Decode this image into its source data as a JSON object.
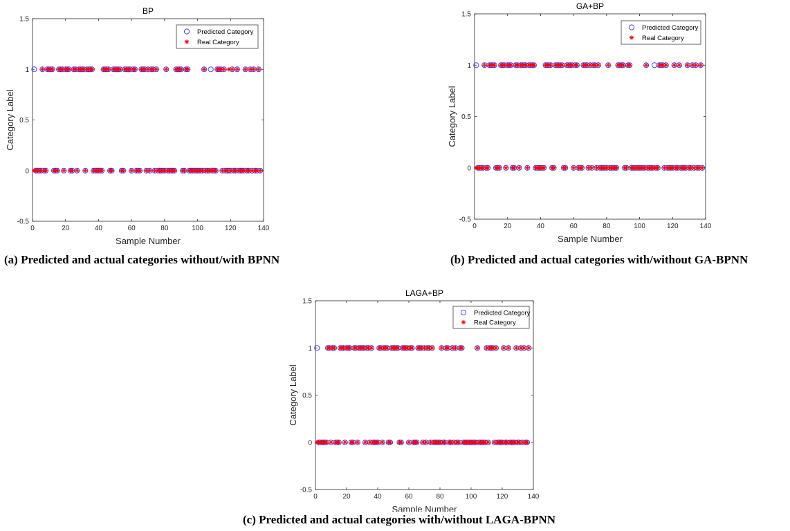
{
  "captions": {
    "a": "(a) Predicted and actual categories without/with BPNN",
    "b": "(b) Predicted and actual categories with/without GA-BPNN",
    "c": "(c) Predicted and actual categories with/without LAGA-BPNN"
  },
  "colors": {
    "predicted": "#3333ff",
    "real": "#ff0000"
  },
  "chart_data": [
    {
      "type": "scatter",
      "title": "BP",
      "xlabel": "Sample Number",
      "ylabel": "Category Label",
      "xlim": [
        0,
        140
      ],
      "ylim": [
        -0.5,
        1.5
      ],
      "xticks": [
        "0",
        "20",
        "40",
        "60",
        "80",
        "100",
        "120",
        "140"
      ],
      "yticks": [
        "-0.5",
        "0",
        "0.5",
        "1",
        "1.5"
      ],
      "grid": false,
      "legend_position": "top-right",
      "series": [
        {
          "name": "Predicted Category",
          "marker": "circle",
          "ones": [
            1,
            6,
            9,
            10,
            11,
            12,
            16,
            17,
            18,
            20,
            21,
            22,
            25,
            26,
            28,
            29,
            30,
            31,
            33,
            34,
            35,
            36,
            43,
            44,
            45,
            46,
            49,
            50,
            51,
            52,
            53,
            56,
            57,
            58,
            59,
            61,
            62,
            66,
            67,
            68,
            70,
            72,
            73,
            75,
            81,
            87,
            88,
            89,
            90,
            93,
            94,
            104,
            108,
            112,
            113,
            114,
            116,
            121,
            124,
            129,
            132,
            134,
            137
          ],
          "zeros": [
            2,
            3,
            4,
            5,
            7,
            8,
            13,
            14,
            15,
            19,
            23,
            24,
            27,
            32,
            37,
            38,
            39,
            40,
            41,
            42,
            47,
            48,
            54,
            55,
            60,
            63,
            64,
            65,
            69,
            71,
            74,
            76,
            77,
            78,
            79,
            80,
            82,
            83,
            84,
            85,
            86,
            91,
            92,
            95,
            96,
            97,
            98,
            99,
            100,
            101,
            102,
            103,
            105,
            106,
            107,
            109,
            110,
            111,
            115,
            117,
            118,
            119,
            120,
            122,
            123,
            125,
            126,
            127,
            128,
            130,
            131,
            133,
            135,
            136,
            138
          ]
        },
        {
          "name": "Real Category",
          "marker": "asterisk",
          "ones": [
            6,
            9,
            10,
            11,
            12,
            16,
            17,
            18,
            20,
            21,
            22,
            25,
            26,
            28,
            29,
            30,
            31,
            33,
            34,
            35,
            36,
            43,
            44,
            45,
            46,
            49,
            50,
            51,
            52,
            53,
            56,
            57,
            58,
            59,
            61,
            62,
            66,
            67,
            68,
            70,
            72,
            73,
            75,
            81,
            87,
            88,
            89,
            90,
            93,
            94,
            104,
            112,
            113,
            114,
            116,
            119,
            121,
            124,
            129,
            132,
            134,
            137
          ],
          "zeros": [
            1,
            2,
            3,
            4,
            5,
            7,
            8,
            13,
            14,
            15,
            19,
            23,
            24,
            27,
            32,
            37,
            38,
            39,
            40,
            41,
            42,
            47,
            48,
            54,
            55,
            60,
            63,
            64,
            65,
            69,
            71,
            74,
            76,
            77,
            78,
            79,
            80,
            82,
            83,
            84,
            85,
            86,
            91,
            92,
            95,
            96,
            97,
            98,
            99,
            100,
            101,
            102,
            103,
            105,
            106,
            107,
            108,
            109,
            110,
            111,
            115,
            117,
            118,
            120,
            122,
            123,
            125,
            126,
            127,
            128,
            130,
            131,
            133,
            135,
            136,
            138
          ]
        }
      ]
    },
    {
      "type": "scatter",
      "title": "GA+BP",
      "xlabel": "Sample Number",
      "ylabel": "Category Label",
      "xlim": [
        0,
        140
      ],
      "ylim": [
        -0.5,
        1.5
      ],
      "xticks": [
        "0",
        "20",
        "40",
        "60",
        "80",
        "100",
        "120",
        "140"
      ],
      "yticks": [
        "-0.5",
        "0",
        "0.5",
        "1",
        "1.5"
      ],
      "grid": false,
      "legend_position": "top-right",
      "series": [
        {
          "name": "Predicted Category",
          "marker": "circle",
          "ones": [
            1,
            6,
            9,
            10,
            11,
            12,
            16,
            17,
            18,
            20,
            21,
            22,
            25,
            26,
            28,
            29,
            30,
            31,
            33,
            34,
            35,
            36,
            43,
            44,
            45,
            46,
            49,
            50,
            51,
            52,
            53,
            56,
            57,
            58,
            59,
            61,
            62,
            66,
            67,
            68,
            70,
            72,
            73,
            75,
            81,
            87,
            88,
            89,
            90,
            93,
            94,
            104,
            109,
            112,
            113,
            114,
            116,
            121,
            124,
            129,
            132,
            134,
            137
          ],
          "zeros": [
            2,
            3,
            4,
            5,
            7,
            8,
            13,
            14,
            15,
            19,
            23,
            24,
            27,
            32,
            37,
            38,
            39,
            40,
            41,
            42,
            47,
            48,
            54,
            55,
            60,
            63,
            64,
            65,
            69,
            71,
            74,
            76,
            77,
            78,
            79,
            80,
            82,
            83,
            84,
            85,
            86,
            91,
            92,
            95,
            96,
            97,
            98,
            99,
            100,
            101,
            102,
            103,
            105,
            106,
            107,
            108,
            110,
            111,
            115,
            117,
            118,
            119,
            120,
            122,
            123,
            125,
            126,
            127,
            128,
            130,
            131,
            133,
            135,
            136,
            138
          ]
        },
        {
          "name": "Real Category",
          "marker": "asterisk",
          "ones": [
            6,
            9,
            10,
            11,
            12,
            16,
            17,
            18,
            20,
            21,
            22,
            25,
            26,
            28,
            29,
            30,
            31,
            33,
            34,
            35,
            36,
            43,
            44,
            45,
            46,
            49,
            50,
            51,
            52,
            53,
            56,
            57,
            58,
            59,
            61,
            62,
            66,
            67,
            68,
            70,
            72,
            73,
            75,
            81,
            87,
            88,
            89,
            90,
            93,
            94,
            104,
            112,
            113,
            114,
            116,
            121,
            124,
            129,
            132,
            134,
            137
          ],
          "zeros": [
            1,
            2,
            3,
            4,
            5,
            7,
            8,
            13,
            14,
            15,
            19,
            23,
            24,
            27,
            32,
            37,
            38,
            39,
            40,
            41,
            42,
            47,
            48,
            54,
            55,
            60,
            63,
            64,
            65,
            69,
            71,
            74,
            76,
            77,
            78,
            79,
            80,
            82,
            83,
            84,
            85,
            86,
            91,
            92,
            95,
            96,
            97,
            98,
            99,
            100,
            101,
            102,
            103,
            105,
            106,
            107,
            108,
            109,
            110,
            111,
            115,
            117,
            118,
            119,
            120,
            122,
            123,
            125,
            126,
            127,
            128,
            130,
            131,
            133,
            135,
            136,
            138
          ]
        }
      ]
    },
    {
      "type": "scatter",
      "title": "LAGA+BP",
      "xlabel": "Sample Number",
      "ylabel": "Category Label",
      "xlim": [
        0,
        140
      ],
      "ylim": [
        -0.5,
        1.5
      ],
      "xticks": [
        "0",
        "20",
        "40",
        "60",
        "80",
        "100",
        "120",
        "140"
      ],
      "yticks": [
        "-0.5",
        "0",
        "0.5",
        "1",
        "1.5"
      ],
      "grid": false,
      "legend_position": "top-right",
      "series": [
        {
          "name": "Predicted Category",
          "marker": "circle",
          "ones": [
            1,
            8,
            9,
            11,
            12,
            16,
            17,
            18,
            20,
            21,
            22,
            25,
            26,
            28,
            29,
            30,
            31,
            33,
            34,
            36,
            41,
            42,
            44,
            45,
            46,
            49,
            50,
            51,
            52,
            53,
            56,
            57,
            58,
            59,
            61,
            62,
            66,
            67,
            68,
            70,
            72,
            73,
            75,
            81,
            84,
            85,
            88,
            90,
            93,
            94,
            104,
            110,
            112,
            113,
            114,
            116,
            121,
            124,
            129,
            132,
            134,
            137
          ],
          "zeros": [
            2,
            3,
            4,
            5,
            6,
            7,
            10,
            13,
            14,
            15,
            19,
            23,
            24,
            27,
            32,
            35,
            37,
            38,
            39,
            40,
            43,
            47,
            48,
            54,
            55,
            60,
            63,
            64,
            65,
            69,
            71,
            74,
            76,
            77,
            78,
            79,
            80,
            82,
            83,
            86,
            87,
            89,
            91,
            92,
            95,
            96,
            97,
            98,
            99,
            100,
            101,
            102,
            103,
            105,
            106,
            107,
            108,
            109,
            111,
            115,
            117,
            118,
            119,
            120,
            122,
            123,
            125,
            126,
            127,
            128,
            130,
            131,
            133,
            135,
            136
          ]
        },
        {
          "name": "Real Category",
          "marker": "asterisk",
          "ones": [
            8,
            9,
            11,
            12,
            16,
            17,
            18,
            20,
            21,
            22,
            25,
            26,
            28,
            29,
            30,
            31,
            33,
            34,
            36,
            41,
            42,
            44,
            45,
            46,
            49,
            50,
            51,
            52,
            53,
            56,
            57,
            58,
            59,
            61,
            62,
            66,
            67,
            68,
            70,
            72,
            73,
            75,
            81,
            84,
            85,
            88,
            90,
            93,
            94,
            104,
            110,
            112,
            113,
            114,
            116,
            121,
            124,
            129,
            132,
            134,
            137
          ],
          "zeros": [
            1,
            2,
            3,
            4,
            5,
            6,
            7,
            10,
            13,
            14,
            15,
            19,
            23,
            24,
            27,
            32,
            35,
            37,
            38,
            39,
            40,
            43,
            47,
            48,
            54,
            55,
            60,
            63,
            64,
            65,
            69,
            71,
            74,
            76,
            77,
            78,
            79,
            80,
            82,
            83,
            86,
            87,
            89,
            91,
            92,
            95,
            96,
            97,
            98,
            99,
            100,
            101,
            102,
            103,
            105,
            106,
            107,
            108,
            109,
            111,
            115,
            117,
            118,
            119,
            120,
            122,
            123,
            125,
            126,
            127,
            128,
            130,
            131,
            133,
            135,
            136
          ]
        }
      ]
    }
  ]
}
